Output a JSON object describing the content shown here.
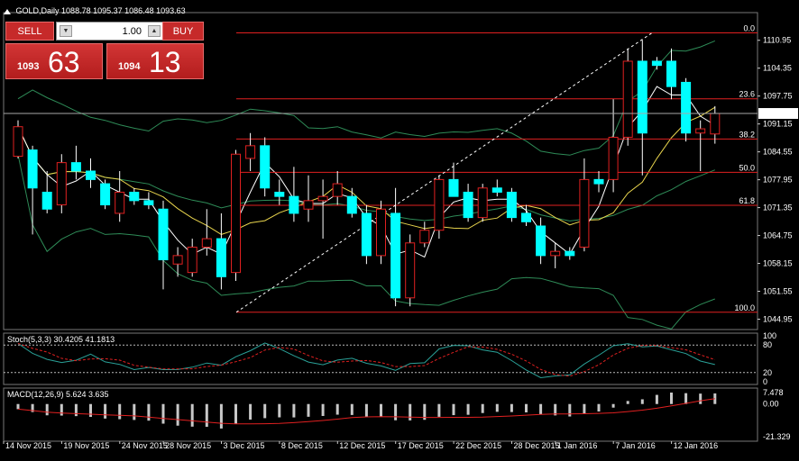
{
  "header": {
    "symbol": "GOLD,Daily",
    "ohlc": "1088.78 1095.37 1086.48 1093.63"
  },
  "trade_panel": {
    "sell_label": "SELL",
    "buy_label": "BUY",
    "lot_value": "1.00",
    "sell_small": "1093",
    "sell_big": "63",
    "buy_small": "1094",
    "buy_big": "13"
  },
  "indicators": {
    "stoch_label": "Stoch(5,3,3) 30.4205 41.1813",
    "macd_label": "MACD(12,26,9) 5.624 3.635"
  },
  "chart_data": {
    "type": "candlestick",
    "symbol": "GOLD",
    "timeframe": "Daily",
    "ylim": [
      1042.5,
      1117.5
    ],
    "yticks": [
      1110.95,
      1104.35,
      1097.75,
      1091.15,
      1084.55,
      1077.95,
      1071.35,
      1064.75,
      1058.15,
      1051.55,
      1044.95
    ],
    "current_price": "1093.63",
    "xticks": [
      "14 Nov 2015",
      "19 Nov 2015",
      "24 Nov 2015",
      "28 Nov 2015",
      "3 Dec 2015",
      "8 Dec 2015",
      "12 Dec 2015",
      "17 Dec 2015",
      "22 Dec 2015",
      "28 Dec 2015",
      "1 Jan 2016",
      "7 Jan 2016",
      "12 Jan 2016"
    ],
    "candles": [
      [
        1083.5,
        1092.0,
        1083.0,
        1090.5
      ],
      [
        1085.0,
        1086.0,
        1065.0,
        1076.0
      ],
      [
        1075.0,
        1080.0,
        1070.0,
        1071.0
      ],
      [
        1072.0,
        1084.0,
        1070.0,
        1082.0
      ],
      [
        1082.0,
        1086.0,
        1078.0,
        1080.0
      ],
      [
        1080.0,
        1083.0,
        1076.0,
        1078.0
      ],
      [
        1077.0,
        1078.0,
        1071.0,
        1072.0
      ],
      [
        1070.0,
        1080.0,
        1068.0,
        1075.0
      ],
      [
        1075.0,
        1076.0,
        1072.0,
        1073.0
      ],
      [
        1073.0,
        1075.0,
        1071.0,
        1072.0
      ],
      [
        1071.0,
        1073.0,
        1052.0,
        1059.0
      ],
      [
        1058.0,
        1062.0,
        1055.0,
        1060.0
      ],
      [
        1056.0,
        1064.0,
        1055.0,
        1062.0
      ],
      [
        1062.0,
        1071.0,
        1060.0,
        1064.0
      ],
      [
        1064.0,
        1070.0,
        1052.0,
        1055.0
      ],
      [
        1056.0,
        1085.0,
        1054.0,
        1084.0
      ],
      [
        1083.0,
        1089.0,
        1080.0,
        1086.0
      ],
      [
        1086.0,
        1088.0,
        1074.0,
        1076.0
      ],
      [
        1075.0,
        1078.0,
        1072.0,
        1074.0
      ],
      [
        1074.0,
        1081.0,
        1068.0,
        1070.0
      ],
      [
        1071.0,
        1079.0,
        1068.0,
        1073.0
      ],
      [
        1073.0,
        1078.0,
        1064.0,
        1074.0
      ],
      [
        1074.0,
        1080.0,
        1072.0,
        1077.0
      ],
      [
        1074.0,
        1076.0,
        1069.0,
        1070.0
      ],
      [
        1070.0,
        1072.0,
        1058.0,
        1060.0
      ],
      [
        1060.0,
        1073.0,
        1058.0,
        1071.0
      ],
      [
        1070.0,
        1076.0,
        1048.0,
        1050.0
      ],
      [
        1050.0,
        1065.0,
        1048.0,
        1063.0
      ],
      [
        1063.0,
        1068.0,
        1062.0,
        1066.0
      ],
      [
        1066.0,
        1079.0,
        1064.0,
        1078.0
      ],
      [
        1078.0,
        1082.0,
        1074.0,
        1074.0
      ],
      [
        1075.0,
        1077.0,
        1068.0,
        1069.0
      ],
      [
        1069.0,
        1077.0,
        1068.0,
        1076.0
      ],
      [
        1076.0,
        1078.0,
        1074.0,
        1075.0
      ],
      [
        1075.0,
        1076.0,
        1068.0,
        1069.0
      ],
      [
        1070.0,
        1072.0,
        1067.0,
        1068.0
      ],
      [
        1067.0,
        1069.0,
        1058.0,
        1060.0
      ],
      [
        1060.0,
        1063.0,
        1057.0,
        1061.0
      ],
      [
        1061.0,
        1062.0,
        1059.0,
        1060.0
      ],
      [
        1062.0,
        1083.0,
        1061.0,
        1078.0
      ],
      [
        1078.0,
        1080.0,
        1075.0,
        1077.0
      ],
      [
        1078.0,
        1097.0,
        1075.0,
        1088.0
      ],
      [
        1088.0,
        1109.0,
        1086.0,
        1106.0
      ],
      [
        1106.0,
        1111.0,
        1079.0,
        1089.0
      ],
      [
        1106.0,
        1107.0,
        1104.0,
        1105.0
      ],
      [
        1106.0,
        1109.0,
        1097.0,
        1100.0
      ],
      [
        1101.0,
        1102.0,
        1087.0,
        1089.0
      ],
      [
        1089.0,
        1092.0,
        1080.0,
        1090.0
      ],
      [
        1088.78,
        1095.37,
        1086.48,
        1093.63
      ]
    ],
    "fib_levels": [
      {
        "label": "0.0",
        "price": 1112.7
      },
      {
        "label": "23.6",
        "price": 1097.1
      },
      {
        "label": "38.2",
        "price": 1087.6
      },
      {
        "label": "50.0",
        "price": 1079.7
      },
      {
        "label": "61.8",
        "price": 1071.9
      },
      {
        "label": "100.0",
        "price": 1046.6
      }
    ],
    "stoch_levels": [
      "100",
      "80",
      "20",
      "0"
    ],
    "macd_ticks": [
      "7.478",
      "0.00",
      "-21.329"
    ],
    "macd_range": [
      -21.329,
      7.478
    ]
  }
}
